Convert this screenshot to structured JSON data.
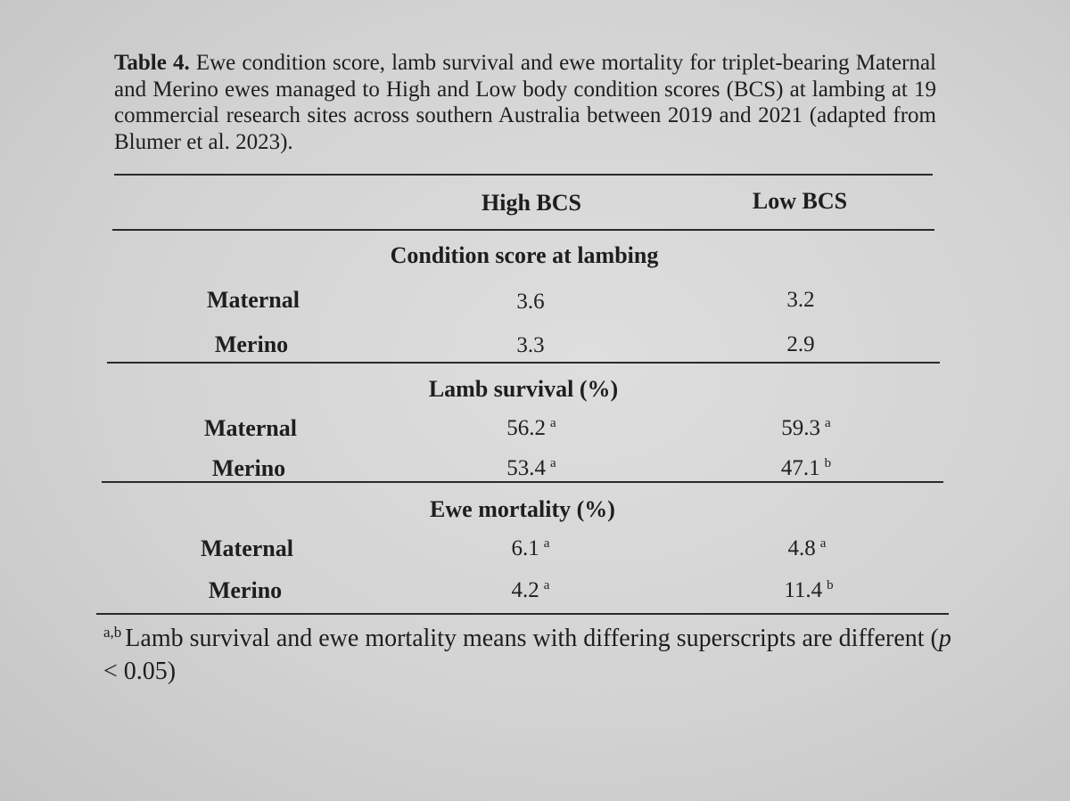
{
  "caption": {
    "label": "Table 4.",
    "text": "Ewe condition score, lamb survival and ewe mortality for triplet-bearing Maternal and Merino ewes managed to High and Low body condition scores (BCS) at lambing at 19 commercial research sites across southern Australia between 2019 and 2021 (adapted from Blumer et al. 2023)."
  },
  "table": {
    "columns": [
      "",
      "High BCS",
      "Low BCS"
    ],
    "sections": [
      {
        "title": "Condition score at lambing",
        "rows": [
          {
            "breed": "Maternal",
            "high": "3.6",
            "high_sup": "",
            "low": "3.2",
            "low_sup": ""
          },
          {
            "breed": "Merino",
            "high": "3.3",
            "high_sup": "",
            "low": "2.9",
            "low_sup": ""
          }
        ]
      },
      {
        "title": "Lamb survival (%)",
        "rows": [
          {
            "breed": "Maternal",
            "high": "56.2",
            "high_sup": "a",
            "low": "59.3",
            "low_sup": "a"
          },
          {
            "breed": "Merino",
            "high": "53.4",
            "high_sup": "a",
            "low": "47.1",
            "low_sup": "b"
          }
        ]
      },
      {
        "title": "Ewe mortality (%)",
        "rows": [
          {
            "breed": "Maternal",
            "high": "6.1",
            "high_sup": "a",
            "low": "4.8",
            "low_sup": "a"
          },
          {
            "breed": "Merino",
            "high": "4.2",
            "high_sup": "a",
            "low": "11.4",
            "low_sup": "b"
          }
        ]
      }
    ]
  },
  "footnote": {
    "sup": "a,b",
    "text_before": "Lamb survival and ewe mortality means with differing superscripts are different (",
    "p": "p",
    "text_after": " < 0.05)"
  }
}
